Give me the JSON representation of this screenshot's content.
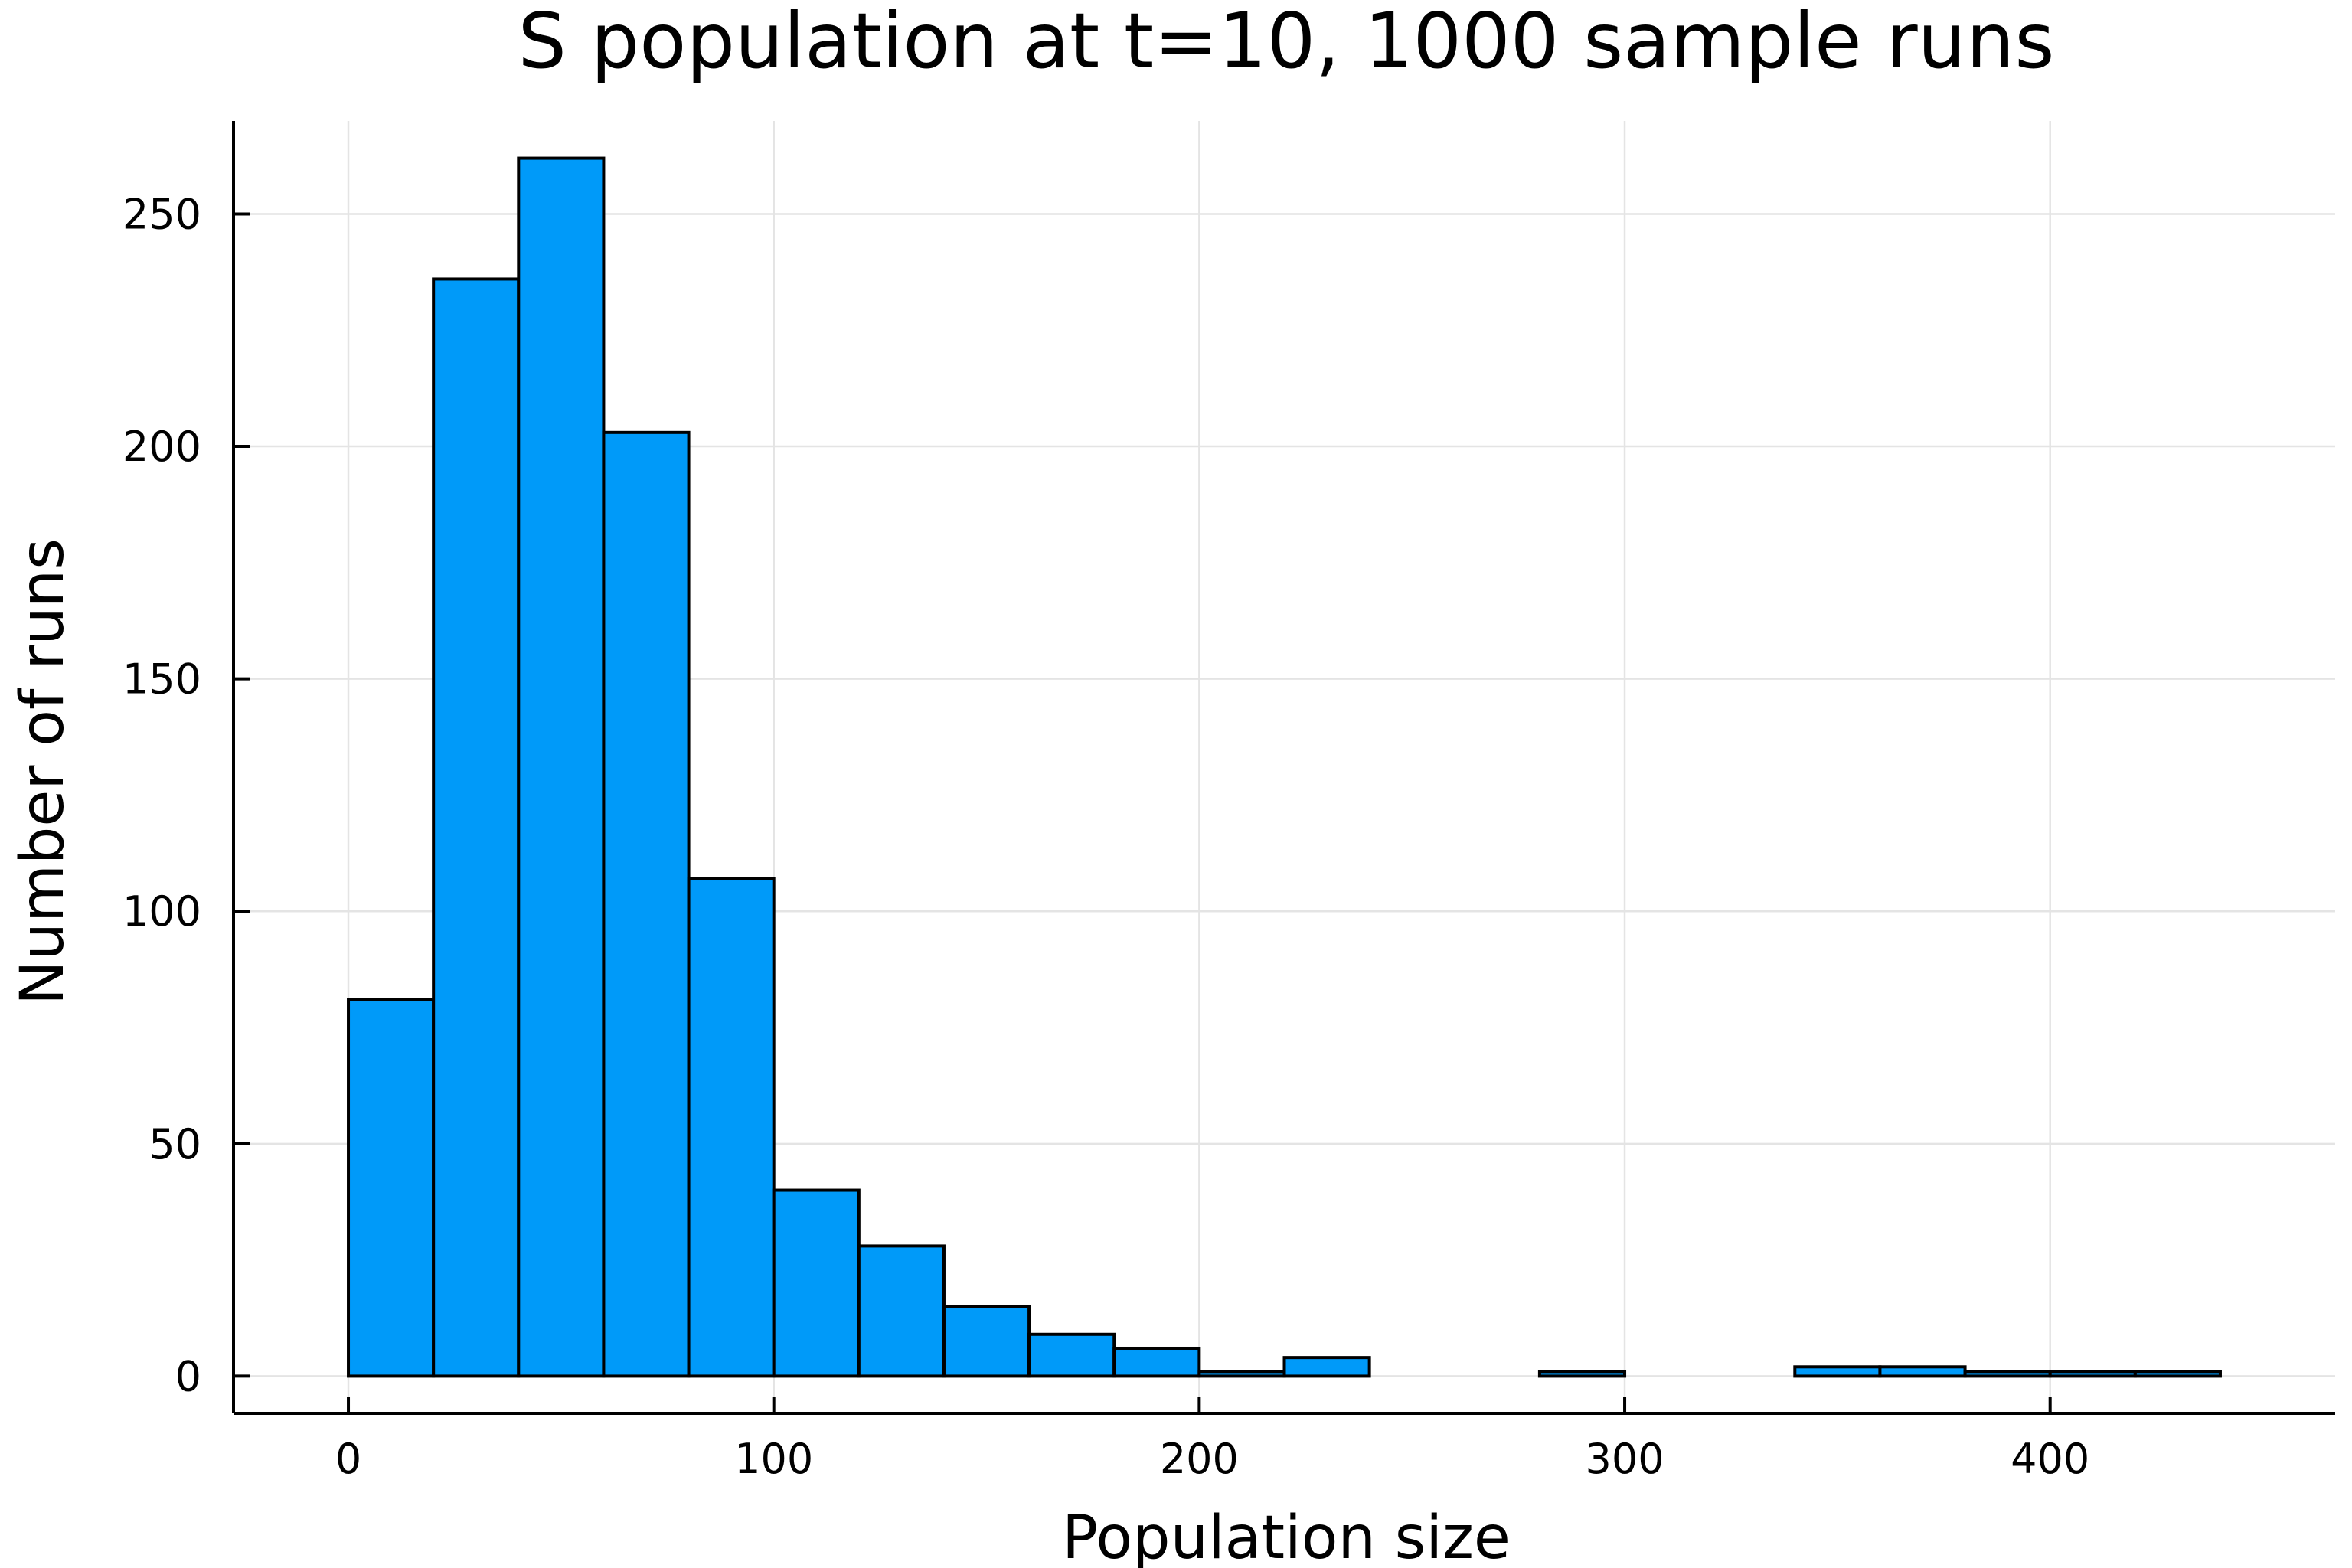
{
  "chart_data": {
    "type": "bar",
    "title": "S population at t=10, 1000 sample runs",
    "xlabel": "Population size",
    "ylabel": "Number of runs",
    "bin_edges": [
      0,
      20,
      40,
      60,
      80,
      100,
      120,
      140,
      160,
      180,
      200,
      220,
      240,
      260,
      280,
      300,
      320,
      340,
      360,
      380,
      400,
      420,
      440
    ],
    "values": [
      81,
      236,
      262,
      203,
      107,
      40,
      28,
      15,
      9,
      6,
      1,
      4,
      0,
      0,
      1,
      0,
      0,
      2,
      2,
      1,
      1,
      1
    ],
    "xlim": [
      -27,
      467
    ],
    "ylim": [
      -8,
      270
    ],
    "xticks": [
      0,
      100,
      200,
      300,
      400
    ],
    "yticks": [
      0,
      50,
      100,
      150,
      200,
      250
    ],
    "bar_color": "#009af9",
    "grid": true,
    "legend": "none"
  }
}
